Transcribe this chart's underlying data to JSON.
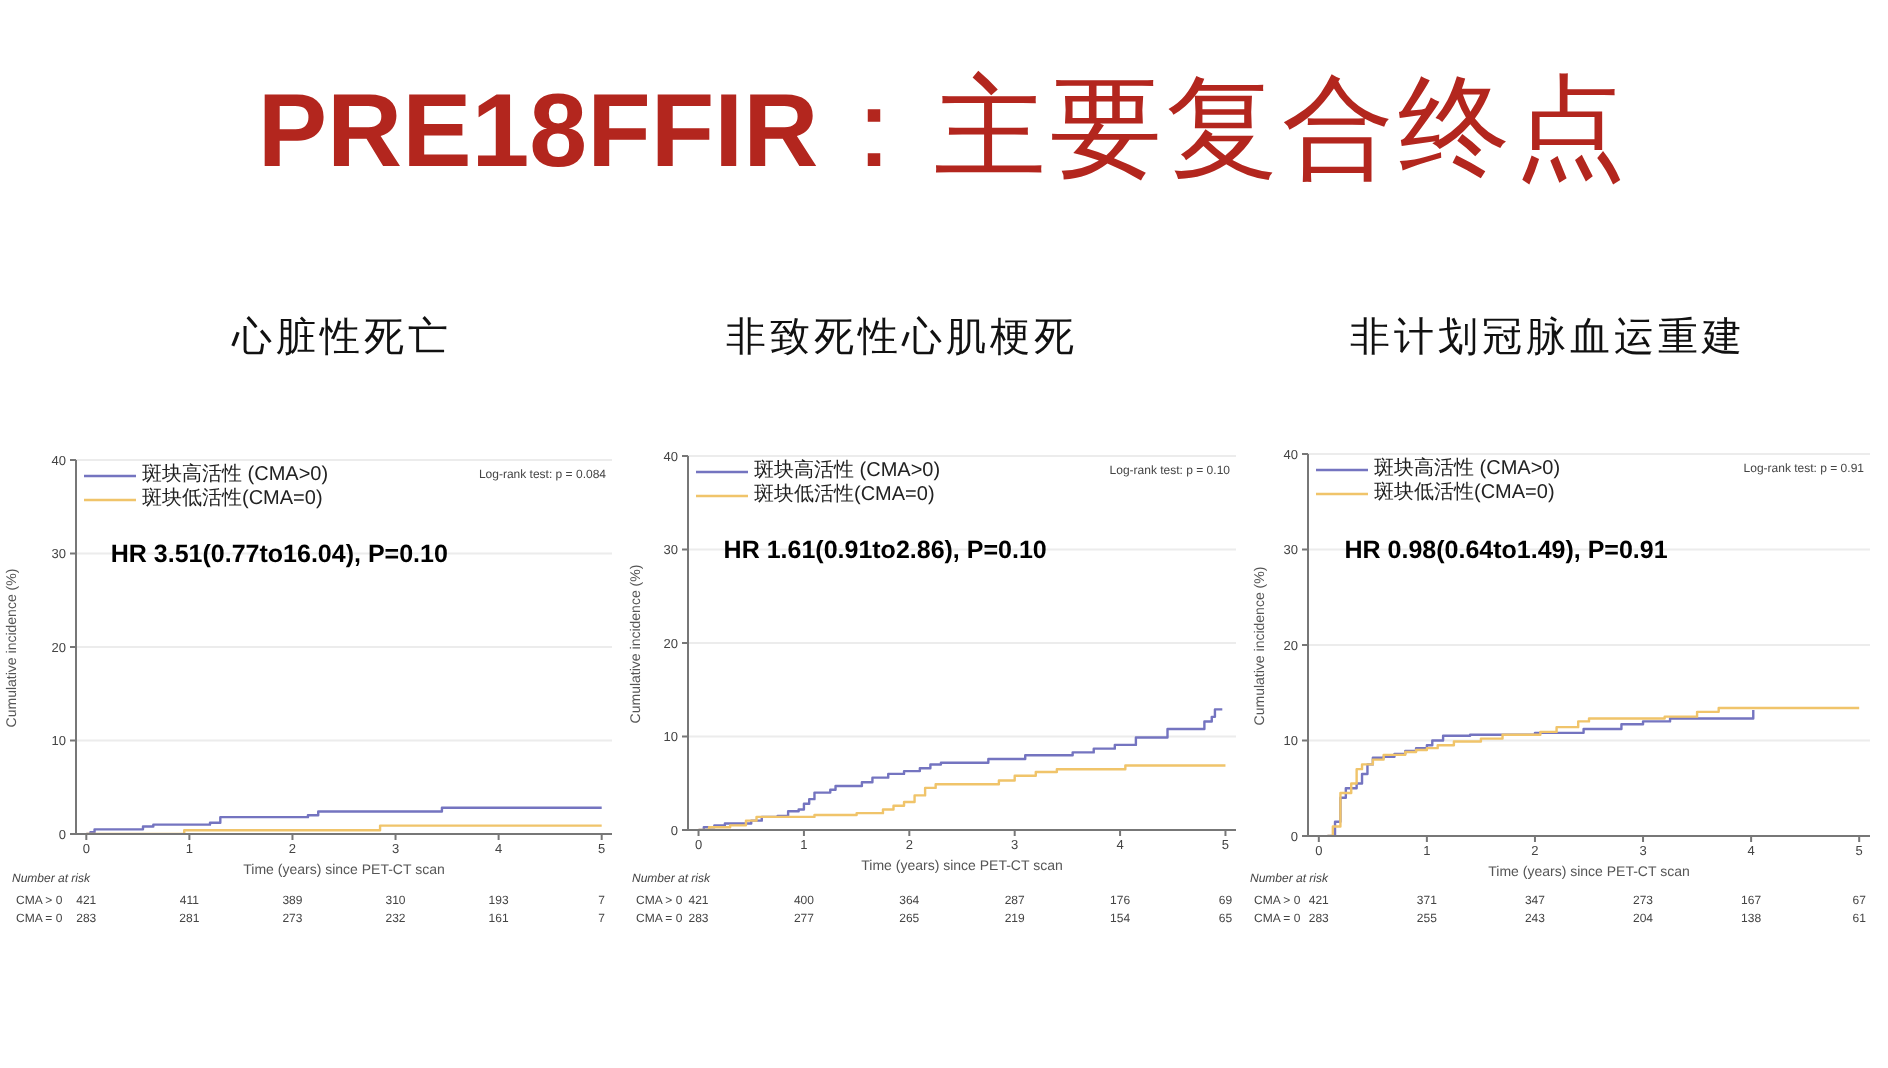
{
  "chart_data": [
    {
      "type": "step",
      "title": "PRE18FFIR：主要复合终点",
      "subtitle": "心脏性死亡",
      "xlabel": "Time (years) since PET-CT scan",
      "ylabel": "Cumulative incidence (%)",
      "xlim": [
        -0.1,
        5.1
      ],
      "xticks": [
        0,
        1,
        2,
        3,
        4,
        5
      ],
      "ylim": [
        0,
        40
      ],
      "yticks": [
        0,
        10,
        20,
        30,
        40
      ],
      "grid": "y",
      "legend": "top left",
      "series": [
        {
          "name": "斑块高活性 (CMA>0)",
          "color": "#7474c0",
          "x": [
            0,
            0.04,
            0.08,
            0.55,
            0.65,
            1.2,
            1.3,
            2.15,
            2.25,
            3.45,
            5
          ],
          "values": [
            0,
            0.2,
            0.5,
            0.8,
            1.0,
            1.2,
            1.8,
            2.0,
            2.4,
            2.8,
            2.8
          ]
        },
        {
          "name": "斑块低活性(CMA=0)",
          "color": "#f0c46a",
          "x": [
            0,
            0.95,
            2.85,
            5
          ],
          "values": [
            0,
            0.4,
            0.9,
            0.9
          ]
        }
      ],
      "annotations": [
        "Log-rank test: p = 0.084",
        "HR 3.51(0.77to16.04), P=0.10",
        "Number at risk",
        "CMA > 0",
        "421",
        "411",
        "389",
        "310",
        "193",
        "7",
        "CMA = 0",
        "283",
        "281",
        "273",
        "232",
        "161",
        "7"
      ]
    },
    {
      "type": "step",
      "subtitle": "非致死性心肌梗死",
      "xlabel": "Time (years) since PET-CT scan",
      "ylabel": "Cumulative incidence (%)",
      "xlim": [
        -0.1,
        5.1
      ],
      "xticks": [
        0,
        1,
        2,
        3,
        4,
        5
      ],
      "ylim": [
        0,
        40
      ],
      "yticks": [
        0,
        10,
        20,
        30,
        40
      ],
      "grid": "y",
      "legend": "top left",
      "series": [
        {
          "name": "斑块高活性 (CMA>0)",
          "color": "#7474c0",
          "x": [
            0,
            0.05,
            0.15,
            0.25,
            0.5,
            0.6,
            0.75,
            0.85,
            0.95,
            1.0,
            1.05,
            1.1,
            1.25,
            1.3,
            1.55,
            1.65,
            1.8,
            1.95,
            2.1,
            2.2,
            2.3,
            2.75,
            3.1,
            3.55,
            3.75,
            3.95,
            4.15,
            4.45,
            4.8,
            4.87,
            4.9,
            4.97
          ],
          "values": [
            0,
            0.3,
            0.5,
            0.7,
            1.0,
            1.4,
            1.5,
            2.0,
            2.2,
            2.8,
            3.3,
            4.0,
            4.3,
            4.7,
            5.1,
            5.6,
            6.0,
            6.3,
            6.6,
            7.0,
            7.2,
            7.6,
            8.0,
            8.3,
            8.7,
            9.1,
            9.9,
            10.8,
            11.6,
            12.1,
            12.9,
            12.9
          ]
        },
        {
          "name": "斑块低活性(CMA=0)",
          "color": "#f0c46a",
          "x": [
            0,
            0.1,
            0.3,
            0.45,
            0.55,
            1.1,
            1.5,
            1.75,
            1.85,
            1.95,
            2.05,
            2.15,
            2.25,
            2.85,
            3.0,
            3.2,
            3.4,
            4.05,
            5
          ],
          "values": [
            0,
            0.3,
            0.5,
            1.0,
            1.4,
            1.6,
            1.8,
            2.2,
            2.6,
            3.0,
            3.7,
            4.5,
            4.9,
            5.3,
            5.8,
            6.2,
            6.5,
            6.9,
            6.9
          ]
        }
      ],
      "annotations": [
        "Log-rank test: p = 0.10",
        "HR 1.61(0.91to2.86), P=0.10",
        "Number at risk",
        "CMA > 0",
        "421",
        "400",
        "364",
        "287",
        "176",
        "69",
        "CMA = 0",
        "283",
        "277",
        "265",
        "219",
        "154",
        "65"
      ]
    },
    {
      "type": "step",
      "subtitle": "非计划冠脉血运重建",
      "xlabel": "Time (years) since PET-CT scan",
      "ylabel": "Cumulative incidence (%)",
      "xlim": [
        -0.1,
        5.1
      ],
      "xticks": [
        0,
        1,
        2,
        3,
        4,
        5
      ],
      "ylim": [
        0,
        40
      ],
      "yticks": [
        0,
        10,
        20,
        30,
        40
      ],
      "grid": "y",
      "legend": "top left",
      "series": [
        {
          "name": "斑块高活性 (CMA>0)",
          "color": "#7474c0",
          "x": [
            0.08,
            0.15,
            0.2,
            0.25,
            0.35,
            0.4,
            0.45,
            0.5,
            0.6,
            0.7,
            0.8,
            0.9,
            1.0,
            1.05,
            1.15,
            1.4,
            2.0,
            2.45,
            2.8,
            3.0,
            3.25,
            4.02
          ],
          "values": [
            0,
            1.5,
            4.0,
            5.0,
            5.5,
            6.5,
            7.5,
            8.2,
            8.3,
            8.6,
            8.9,
            9.2,
            9.5,
            10.0,
            10.5,
            10.6,
            10.8,
            11.2,
            11.7,
            12.0,
            12.3,
            13.2
          ]
        },
        {
          "name": "斑块低活性(CMA=0)",
          "color": "#f0c46a",
          "x": [
            0.08,
            0.13,
            0.2,
            0.3,
            0.35,
            0.4,
            0.5,
            0.6,
            0.8,
            0.9,
            1.0,
            1.1,
            1.25,
            1.5,
            1.7,
            2.05,
            2.2,
            2.4,
            2.5,
            3.2,
            3.5,
            3.7,
            5
          ],
          "values": [
            0,
            1.0,
            4.5,
            5.5,
            7.0,
            7.5,
            8.0,
            8.5,
            8.8,
            9.0,
            9.2,
            9.5,
            9.9,
            10.2,
            10.6,
            10.9,
            11.4,
            12.0,
            12.3,
            12.5,
            13.0,
            13.4,
            13.4
          ]
        }
      ],
      "annotations": [
        "Log-rank test: p = 0.91",
        "HR 0.98(0.64to1.49), P=0.91",
        "Number at risk",
        "CMA > 0",
        "421",
        "371",
        "347",
        "273",
        "167",
        "67",
        "CMA = 0",
        "283",
        "255",
        "243",
        "204",
        "138",
        "61"
      ]
    }
  ]
}
